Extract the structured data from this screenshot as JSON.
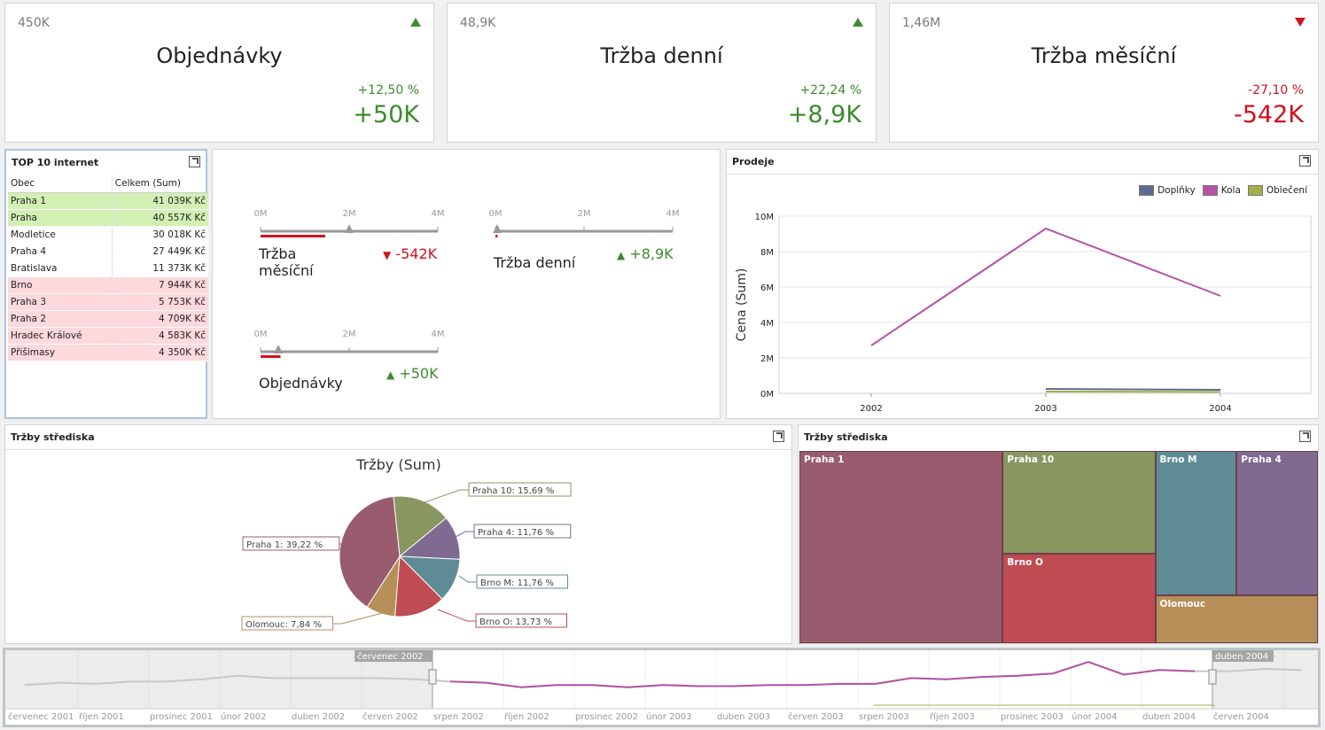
{
  "kpis": [
    {
      "ref": "450K",
      "title": "Objednávky",
      "pct": "+12,50 %",
      "delta": "+50K",
      "trend": "up"
    },
    {
      "ref": "48,9K",
      "title": "Tržba denní",
      "pct": "+22,24 %",
      "delta": "+8,9K",
      "trend": "up"
    },
    {
      "ref": "1,46M",
      "title": "Tržba měsíční",
      "pct": "-27,10 %",
      "delta": "-542K",
      "trend": "down"
    }
  ],
  "top10": {
    "title": "TOP 10 internet",
    "columns": [
      "Obec",
      "Celkem (Sum)"
    ],
    "rows": [
      {
        "city": "Praha 1",
        "value": "41 039K Kč",
        "tone": "green"
      },
      {
        "city": "Praha",
        "value": "40 557K Kč",
        "tone": "green"
      },
      {
        "city": "Modletice",
        "value": "30 018K Kč",
        "tone": "white"
      },
      {
        "city": "Praha 4",
        "value": "27 449K Kč",
        "tone": "white"
      },
      {
        "city": "Bratislava",
        "value": "11 373K Kč",
        "tone": "white"
      },
      {
        "city": "Brno",
        "value": "7 944K Kč",
        "tone": "red"
      },
      {
        "city": "Praha 3",
        "value": "5 753K Kč",
        "tone": "red"
      },
      {
        "city": "Praha 2",
        "value": "4 709K Kč",
        "tone": "red"
      },
      {
        "city": "Hradec Králové",
        "value": "4 583K Kč",
        "tone": "red"
      },
      {
        "city": "Přišimasy",
        "value": "4 350K Kč",
        "tone": "red"
      }
    ]
  },
  "gauges": {
    "ticks": [
      "0M",
      "2M",
      "4M"
    ],
    "items": [
      {
        "label_line1": "Tržba",
        "label_line2": "měsíční",
        "delta": "-542K",
        "trend": "down",
        "actual": 1.46,
        "target": 2.0,
        "max": 4
      },
      {
        "label_line1": "Tržba denní",
        "label_line2": "",
        "delta": "+8,9K",
        "trend": "up",
        "actual": 0.0489,
        "target": 0.04,
        "max": 4
      },
      {
        "label_line1": "Objednávky",
        "label_line2": "",
        "delta": "+50K",
        "trend": "up",
        "actual": 0.45,
        "target": 0.4,
        "max": 4
      }
    ]
  },
  "prodeje": {
    "title": "Prodeje",
    "ylabel": "Cena (Sum)",
    "legend": [
      {
        "name": "Doplňky",
        "color": "#5d6b92"
      },
      {
        "name": "Kola",
        "color": "#b353a3"
      },
      {
        "name": "Oblečení",
        "color": "#a3b04b"
      }
    ]
  },
  "trzby_pie": {
    "title": "Tržby střediska",
    "chart_title": "Tržby (Sum)"
  },
  "trzby_tree": {
    "title": "Tržby střediska"
  },
  "range": {
    "left_handle": "červenec 2002",
    "right_handle": "duben 2004",
    "axis_labels": [
      "červenec 2001",
      "říjen 2001",
      "prosinec 2001",
      "únor 2002",
      "duben 2002",
      "červen 2002",
      "srpen 2002",
      "říjen 2002",
      "prosinec 2002",
      "únor 2003",
      "duben 2003",
      "červen 2003",
      "srpen 2003",
      "říjen 2003",
      "prosinec 2003",
      "únor 2004",
      "duben 2004",
      "červen 2004"
    ]
  },
  "chart_data": [
    {
      "type": "line",
      "title": "",
      "xlabel": "",
      "ylabel": "Cena (Sum)",
      "categories": [
        "2002",
        "2003",
        "2004"
      ],
      "yticks": [
        "0M",
        "2M",
        "4M",
        "6M",
        "8M",
        "10M"
      ],
      "ylim": [
        0,
        10000000
      ],
      "legend_position": "top-right",
      "series": [
        {
          "name": "Doplňky",
          "color": "#5d6b92",
          "values": [
            null,
            250000,
            200000
          ]
        },
        {
          "name": "Kola",
          "color": "#b353a3",
          "values": [
            2700000,
            9300000,
            5500000
          ]
        },
        {
          "name": "Oblečení",
          "color": "#a3b04b",
          "values": [
            null,
            100000,
            80000
          ]
        }
      ]
    },
    {
      "type": "pie",
      "title": "Tržby (Sum)",
      "slices": [
        {
          "name": "Praha 1",
          "value": 39.22,
          "label": "Praha 1: 39,22 %",
          "color": "#985c6e"
        },
        {
          "name": "Praha 10",
          "value": 15.69,
          "label": "Praha 10: 15,69 %",
          "color": "#889660"
        },
        {
          "name": "Praha 4",
          "value": 11.76,
          "label": "Praha 4: 11,76 %",
          "color": "#7f6a91"
        },
        {
          "name": "Brno M",
          "value": 11.76,
          "label": "Brno M: 11,76 %",
          "color": "#5f8c94"
        },
        {
          "name": "Brno O",
          "value": 13.73,
          "label": "Brno O: 13,73 %",
          "color": "#bf4c52"
        },
        {
          "name": "Olomouc",
          "value": 7.84,
          "label": "Olomouc: 7,84 %",
          "color": "#b68f59"
        }
      ]
    },
    {
      "type": "treemap",
      "cells": [
        {
          "name": "Praha 1",
          "value": 39.22,
          "color": "#985c6e"
        },
        {
          "name": "Praha 10",
          "value": 15.69,
          "color": "#889660"
        },
        {
          "name": "Brno O",
          "value": 13.73,
          "color": "#bf4c52"
        },
        {
          "name": "Brno M",
          "value": 11.76,
          "color": "#5f8c94"
        },
        {
          "name": "Praha 4",
          "value": 11.76,
          "color": "#7f6a91"
        },
        {
          "name": "Olomouc",
          "value": 7.84,
          "color": "#b68f59"
        }
      ]
    },
    {
      "type": "line",
      "title": "",
      "series": [
        {
          "name": "Kola",
          "color": "#b353a3",
          "values": [
            1.6,
            1.8,
            1.7,
            1.9,
            1.9,
            2.1,
            2.4,
            2.2,
            2.2,
            2.2,
            2.2,
            2.1,
            1.9,
            1.8,
            1.4,
            1.6,
            1.6,
            1.4,
            1.6,
            1.5,
            1.5,
            1.6,
            1.6,
            1.7,
            1.7,
            2.2,
            2.1,
            2.3,
            2.4,
            2.6,
            3.6,
            2.5,
            2.9,
            2.8,
            2.8,
            3.0,
            2.9
          ]
        }
      ]
    }
  ]
}
